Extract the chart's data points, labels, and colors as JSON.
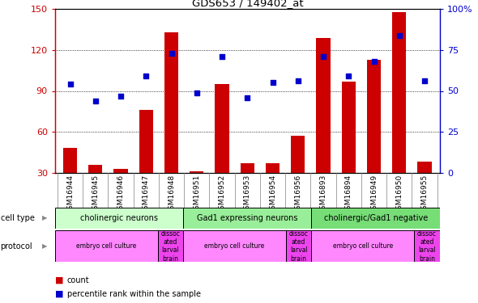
{
  "title": "GDS653 / 149402_at",
  "samples": [
    "GSM16944",
    "GSM16945",
    "GSM16946",
    "GSM16947",
    "GSM16948",
    "GSM16951",
    "GSM16952",
    "GSM16953",
    "GSM16954",
    "GSM16956",
    "GSM16893",
    "GSM16894",
    "GSM16949",
    "GSM16950",
    "GSM16955"
  ],
  "counts": [
    48,
    36,
    33,
    76,
    133,
    31,
    95,
    37,
    37,
    57,
    129,
    97,
    113,
    148,
    38
  ],
  "percentiles": [
    54,
    44,
    47,
    59,
    73,
    49,
    71,
    46,
    55,
    56,
    71,
    59,
    68,
    84,
    56
  ],
  "left_yticks": [
    30,
    60,
    90,
    120,
    150
  ],
  "right_yticks": [
    0,
    25,
    50,
    75,
    100
  ],
  "ylim_left": [
    30,
    150
  ],
  "ylim_right": [
    0,
    100
  ],
  "cell_type_colors": [
    "#ccffcc",
    "#99ee99",
    "#77dd77"
  ],
  "cell_type_groups": [
    {
      "label": "cholinergic neurons",
      "start": 0,
      "end": 5
    },
    {
      "label": "Gad1 expressing neurons",
      "start": 5,
      "end": 10
    },
    {
      "label": "cholinergic/Gad1 negative",
      "start": 10,
      "end": 15
    }
  ],
  "protocol_groups": [
    {
      "label": "embryo cell culture",
      "start": 0,
      "end": 4,
      "dissoc": false
    },
    {
      "label": "dissoc\nated\nlarval\nbrain",
      "start": 4,
      "end": 5,
      "dissoc": true
    },
    {
      "label": "embryo cell culture",
      "start": 5,
      "end": 9,
      "dissoc": false
    },
    {
      "label": "dissoc\nated\nlarval\nbrain",
      "start": 9,
      "end": 10,
      "dissoc": true
    },
    {
      "label": "embryo cell culture",
      "start": 10,
      "end": 14,
      "dissoc": false
    },
    {
      "label": "dissoc\nated\nlarval\nbrain",
      "start": 14,
      "end": 15,
      "dissoc": true
    }
  ],
  "bar_color": "#cc0000",
  "percentile_color": "#0000cc",
  "left_axis_color": "#cc0000",
  "right_axis_color": "#0000cc",
  "protocol_color_main": "#ff88ff",
  "protocol_color_dissoc": "#ee44ee"
}
